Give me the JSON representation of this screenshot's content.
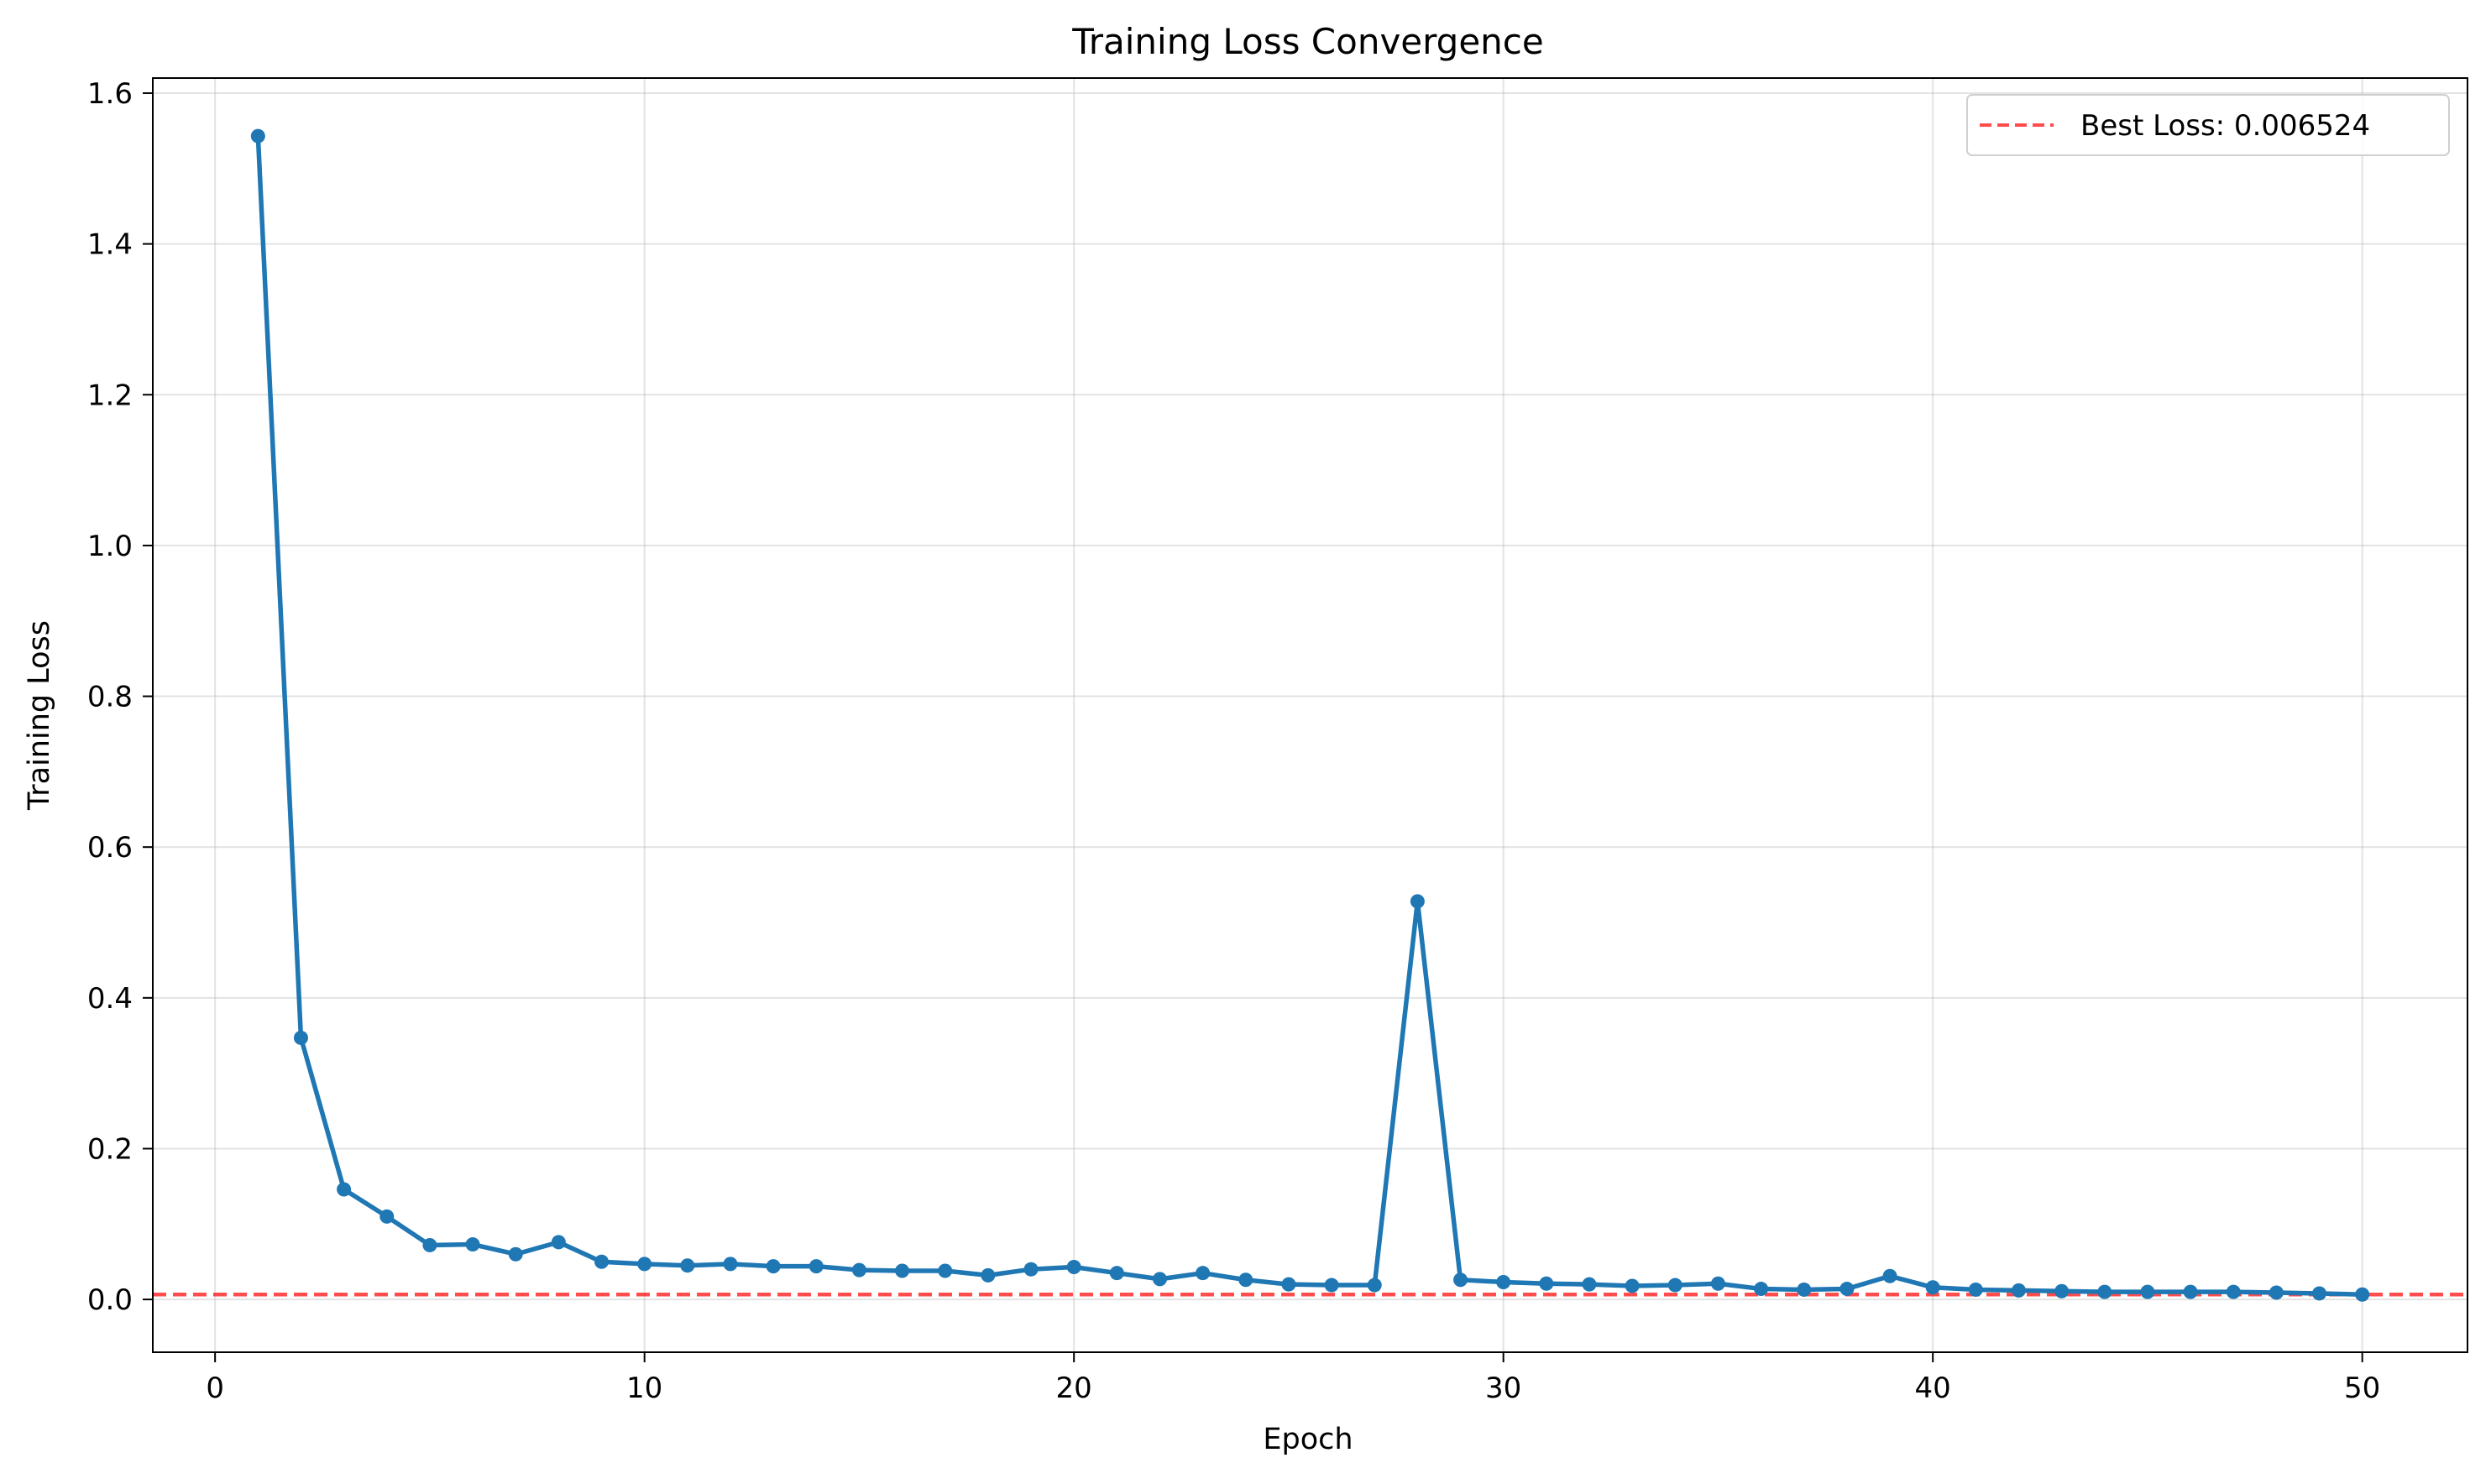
{
  "chart_data": {
    "type": "line",
    "title": "Training Loss Convergence",
    "xlabel": "Epoch",
    "ylabel": "Training Loss",
    "xlim": [
      -1.45,
      52.45
    ],
    "ylim": [
      -0.07,
      1.62
    ],
    "xticks": [
      0,
      10,
      20,
      30,
      40,
      50
    ],
    "yticks": [
      0.0,
      0.2,
      0.4,
      0.6,
      0.8,
      1.0,
      1.2,
      1.4,
      1.6
    ],
    "ytick_labels": [
      "0.0",
      "0.2",
      "0.4",
      "0.6",
      "0.8",
      "1.0",
      "1.2",
      "1.4",
      "1.6"
    ],
    "grid": true,
    "legend_position": "top-right",
    "series": [
      {
        "color": "#1f77b4",
        "x": [
          1,
          2,
          3,
          4,
          5,
          6,
          7,
          8,
          9,
          10,
          11,
          12,
          13,
          14,
          15,
          16,
          17,
          18,
          19,
          20,
          21,
          22,
          23,
          24,
          25,
          26,
          27,
          28,
          29,
          30,
          31,
          32,
          33,
          34,
          35,
          36,
          37,
          38,
          39,
          40,
          41,
          42,
          43,
          44,
          45,
          46,
          47,
          48,
          49,
          50
        ],
        "y": [
          1.543,
          0.347,
          0.146,
          0.11,
          0.072,
          0.073,
          0.06,
          0.076,
          0.05,
          0.047,
          0.045,
          0.047,
          0.044,
          0.044,
          0.039,
          0.038,
          0.038,
          0.032,
          0.04,
          0.043,
          0.035,
          0.027,
          0.035,
          0.026,
          0.02,
          0.019,
          0.019,
          0.528,
          0.026,
          0.023,
          0.021,
          0.02,
          0.018,
          0.019,
          0.021,
          0.014,
          0.013,
          0.014,
          0.031,
          0.016,
          0.013,
          0.012,
          0.011,
          0.01,
          0.01,
          0.01,
          0.01,
          0.009,
          0.008,
          0.006524
        ]
      }
    ],
    "reference_line": {
      "label": "Best Loss: 0.006524",
      "value": 0.006524,
      "color": "#ff0000"
    }
  }
}
